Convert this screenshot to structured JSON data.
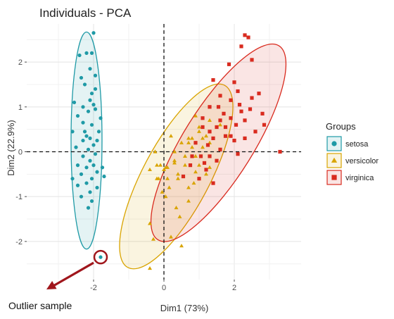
{
  "chart_data": {
    "type": "scatter",
    "title": "Individuals - PCA",
    "xlabel": "Dim1 (73%)",
    "ylabel": "Dim2 (22.9%)",
    "xlim": [
      -3.9,
      3.9
    ],
    "ylim": [
      -2.85,
      2.85
    ],
    "x_ticks": [
      -2,
      0,
      2
    ],
    "y_ticks": [
      -2,
      -1,
      0,
      1,
      2
    ],
    "x_tick_labels": [
      "-2",
      "0",
      "2"
    ],
    "y_tick_labels": [
      "-2",
      "-1",
      "0",
      "1",
      "2"
    ],
    "grid": true,
    "reference_lines": {
      "x": 0,
      "y": 0,
      "style": "dashed"
    },
    "legend": {
      "title": "Groups",
      "placement": "right"
    },
    "series": [
      {
        "name": "setosa",
        "color": "#1f9aa6",
        "marker": "circle",
        "ellipse": {
          "cx": -2.2,
          "cy": 0.25,
          "rx": 0.44,
          "ry": 2.42,
          "angle": 0
        },
        "points": [
          [
            -2.0,
            2.65
          ],
          [
            -2.2,
            2.2
          ],
          [
            -2.4,
            2.15
          ],
          [
            -2.05,
            2.2
          ],
          [
            -2.1,
            1.85
          ],
          [
            -1.95,
            1.7
          ],
          [
            -2.35,
            1.65
          ],
          [
            -2.25,
            1.5
          ],
          [
            -1.95,
            1.4
          ],
          [
            -2.05,
            1.3
          ],
          [
            -2.1,
            1.15
          ],
          [
            -2.0,
            1.05
          ],
          [
            -2.3,
            1.0
          ],
          [
            -1.95,
            0.95
          ],
          [
            -2.15,
            0.9
          ],
          [
            -2.45,
            0.8
          ],
          [
            -2.3,
            0.65
          ],
          [
            -2.05,
            0.6
          ],
          [
            -1.85,
            0.45
          ],
          [
            -2.25,
            0.45
          ],
          [
            -2.6,
            0.45
          ],
          [
            -2.2,
            0.35
          ],
          [
            -2.1,
            0.3
          ],
          [
            -1.9,
            0.25
          ],
          [
            -2.3,
            0.25
          ],
          [
            -2.0,
            0.15
          ],
          [
            -2.15,
            0.05
          ],
          [
            -2.5,
            0.1
          ],
          [
            -1.95,
            -0.05
          ],
          [
            -2.3,
            -0.1
          ],
          [
            -2.1,
            -0.2
          ],
          [
            -2.45,
            -0.3
          ],
          [
            -2.2,
            -0.35
          ],
          [
            -1.9,
            -0.45
          ],
          [
            -2.35,
            -0.5
          ],
          [
            -2.05,
            -0.6
          ],
          [
            -2.2,
            -0.7
          ],
          [
            -2.45,
            -0.75
          ],
          [
            -1.9,
            -0.8
          ],
          [
            -2.1,
            -0.9
          ],
          [
            -2.35,
            -1.0
          ],
          [
            -2.05,
            -1.1
          ],
          [
            -2.15,
            -1.25
          ],
          [
            -1.75,
            -0.35
          ],
          [
            -2.6,
            -0.6
          ],
          [
            -1.8,
            0.75
          ],
          [
            -2.55,
            1.1
          ],
          [
            -1.7,
            -0.55
          ],
          [
            -2.0,
            -0.3
          ],
          [
            -1.8,
            -2.35
          ]
        ]
      },
      {
        "name": "versicolor",
        "color": "#d9a400",
        "marker": "triangle",
        "ellipse": {
          "cx": 0.35,
          "cy": -0.55,
          "rx": 0.95,
          "ry": 2.3,
          "angle": 28
        },
        "points": [
          [
            1.3,
            0.7
          ],
          [
            0.9,
            0.8
          ],
          [
            1.2,
            0.35
          ],
          [
            0.2,
            0.35
          ],
          [
            0.7,
            0.3
          ],
          [
            0.4,
            -0.6
          ],
          [
            1.0,
            -0.3
          ],
          [
            -0.4,
            -0.4
          ],
          [
            0.8,
            0.1
          ],
          [
            -0.2,
            -0.3
          ],
          [
            -0.25,
            0.0
          ],
          [
            0.3,
            0.0
          ],
          [
            0.3,
            -0.2
          ],
          [
            0.6,
            -0.3
          ],
          [
            -0.1,
            -0.3
          ],
          [
            1.0,
            0.55
          ],
          [
            0.5,
            0.2
          ],
          [
            0.0,
            -0.4
          ],
          [
            0.85,
            -0.7
          ],
          [
            0.05,
            -0.35
          ],
          [
            1.1,
            0.1
          ],
          [
            0.3,
            -0.25
          ],
          [
            1.2,
            -0.5
          ],
          [
            0.6,
            -0.1
          ],
          [
            0.8,
            0.3
          ],
          [
            1.0,
            0.45
          ],
          [
            1.3,
            0.2
          ],
          [
            1.6,
            0.6
          ],
          [
            0.9,
            -0.1
          ],
          [
            -0.2,
            -0.6
          ],
          [
            -0.05,
            -0.9
          ],
          [
            -0.15,
            -0.6
          ],
          [
            0.1,
            -0.35
          ],
          [
            1.3,
            -0.35
          ],
          [
            0.4,
            -0.5
          ],
          [
            0.7,
            0.2
          ],
          [
            1.1,
            0.3
          ],
          [
            0.7,
            -1.1
          ],
          [
            0.1,
            -0.6
          ],
          [
            0.05,
            -1.0
          ],
          [
            0.35,
            -1.25
          ],
          [
            0.7,
            -0.8
          ],
          [
            0.15,
            -0.8
          ],
          [
            -0.4,
            -1.6
          ],
          [
            0.2,
            -1.9
          ],
          [
            0.5,
            -2.1
          ],
          [
            -0.4,
            -2.6
          ],
          [
            0.45,
            -1.45
          ],
          [
            -0.3,
            -1.95
          ],
          [
            0.9,
            -0.45
          ]
        ]
      },
      {
        "name": "virginica",
        "color": "#d92b1f",
        "marker": "square",
        "ellipse": {
          "cx": 1.55,
          "cy": 0.2,
          "rx": 1.0,
          "ry": 2.55,
          "angle": 32
        },
        "points": [
          [
            2.3,
            2.6
          ],
          [
            2.4,
            2.55
          ],
          [
            2.2,
            2.35
          ],
          [
            2.5,
            2.05
          ],
          [
            1.85,
            1.95
          ],
          [
            1.4,
            1.6
          ],
          [
            2.0,
            1.55
          ],
          [
            1.6,
            1.25
          ],
          [
            2.1,
            1.35
          ],
          [
            2.5,
            1.2
          ],
          [
            1.7,
            0.85
          ],
          [
            1.3,
            1.0
          ],
          [
            2.2,
            0.9
          ],
          [
            2.8,
            0.85
          ],
          [
            1.9,
            0.75
          ],
          [
            1.5,
            0.55
          ],
          [
            1.75,
            0.35
          ],
          [
            2.3,
            0.3
          ],
          [
            2.6,
            0.45
          ],
          [
            3.3,
            0.0
          ],
          [
            1.4,
            0.3
          ],
          [
            1.1,
            0.55
          ],
          [
            1.25,
            0.15
          ],
          [
            2.0,
            0.25
          ],
          [
            2.3,
            0.7
          ],
          [
            1.6,
            0.05
          ],
          [
            0.9,
            0.2
          ],
          [
            1.3,
            -0.1
          ],
          [
            2.1,
            -0.05
          ],
          [
            1.2,
            -0.4
          ],
          [
            0.75,
            -0.3
          ],
          [
            1.0,
            -0.6
          ],
          [
            1.4,
            -0.7
          ],
          [
            0.55,
            -0.55
          ],
          [
            1.1,
            0.75
          ],
          [
            1.9,
            1.15
          ],
          [
            1.55,
            1.0
          ],
          [
            2.05,
            0.6
          ],
          [
            2.45,
            0.95
          ],
          [
            1.75,
            0.55
          ],
          [
            1.3,
            0.45
          ],
          [
            1.05,
            -0.1
          ],
          [
            1.5,
            -0.2
          ],
          [
            0.8,
            -0.1
          ],
          [
            2.15,
            1.05
          ],
          [
            1.6,
            0.7
          ],
          [
            2.7,
            1.3
          ],
          [
            1.9,
            0.35
          ],
          [
            2.85,
            0.6
          ],
          [
            1.15,
            -0.25
          ]
        ]
      }
    ],
    "annotation": {
      "text": "Outlier sample",
      "target": [
        -1.8,
        -2.35
      ]
    }
  }
}
